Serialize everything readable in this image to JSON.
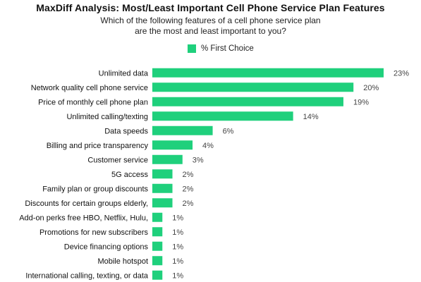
{
  "colors": {
    "bar": "#1fd07c",
    "label": "#111111",
    "value": "#444444"
  },
  "chart_data": {
    "type": "bar",
    "orientation": "horizontal",
    "title": "MaxDiff Analysis: Most/Least Important Cell Phone Service Plan Features",
    "subtitle": [
      "Which of the following features of a cell phone service plan",
      "are the most and least important to you?"
    ],
    "legend": {
      "position": "top",
      "entries": [
        "% First Choice"
      ]
    },
    "xlim": [
      0,
      23
    ],
    "grid": false,
    "categories": [
      "Unlimited data",
      "Network quality cell phone service",
      "Price of monthly cell phone plan",
      "Unlimited calling/texting",
      "Data speeds",
      "Billing and price transparency",
      "Customer service",
      "5G access",
      "Family plan or group discounts",
      "Discounts for certain groups elderly,",
      "Add-on perks free HBO, Netflix, Hulu,",
      "Promotions for new subscribers",
      "Device financing options",
      "Mobile hotspot",
      "International calling, texting, or data"
    ],
    "series": [
      {
        "name": "% First Choice",
        "values": [
          23,
          20,
          19,
          14,
          6,
          4,
          3,
          2,
          2,
          2,
          1,
          1,
          1,
          1,
          1
        ],
        "labels": [
          "23%",
          "20%",
          "19%",
          "14%",
          "6%",
          "4%",
          "3%",
          "2%",
          "2%",
          "2%",
          "1%",
          "1%",
          "1%",
          "1%",
          "1%"
        ]
      }
    ]
  }
}
